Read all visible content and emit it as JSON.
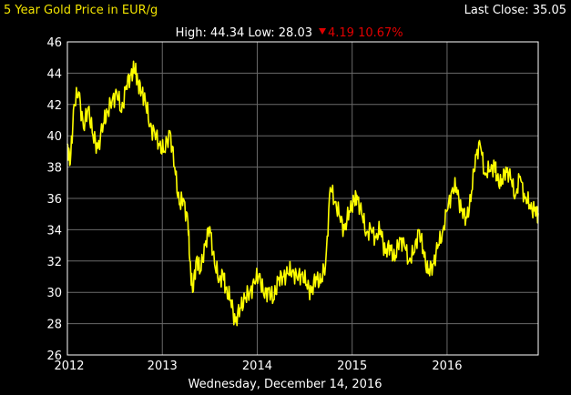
{
  "header": {
    "title": "5 Year Gold Price in EUR/g",
    "last_close_label": "Last Close: 35.05",
    "high_low_label": "High: 44.34 Low: 28.03",
    "change_label": "4.19 10.67%"
  },
  "footer": {
    "date": "Wednesday, December 14, 2016"
  },
  "colors": {
    "line": "#ffff00",
    "title": "#f2e400",
    "change_down": "#e00000",
    "grid": "#6a6a6a",
    "background": "#000000"
  },
  "chart_data": {
    "type": "line",
    "title": "5 Year Gold Price in EUR/g",
    "xlabel": "",
    "ylabel": "",
    "xlim": [
      2012.0,
      2016.96
    ],
    "ylim": [
      26,
      46
    ],
    "x_ticks": [
      "2012",
      "2013",
      "2014",
      "2015",
      "2016"
    ],
    "y_ticks": [
      26,
      28,
      30,
      32,
      34,
      36,
      38,
      40,
      42,
      44,
      46
    ],
    "grid": true,
    "series": [
      {
        "name": "",
        "x": [
          2012.0,
          2012.03,
          2012.07,
          2012.12,
          2012.17,
          2012.22,
          2012.27,
          2012.32,
          2012.38,
          2012.42,
          2012.47,
          2012.52,
          2012.57,
          2012.62,
          2012.67,
          2012.71,
          2012.74,
          2012.78,
          2012.82,
          2012.87,
          2012.92,
          2012.97,
          2013.02,
          2013.08,
          2013.13,
          2013.18,
          2013.22,
          2013.27,
          2013.29,
          2013.32,
          2013.36,
          2013.4,
          2013.45,
          2013.5,
          2013.55,
          2013.6,
          2013.64,
          2013.67,
          2013.72,
          2013.77,
          2013.82,
          2013.87,
          2013.92,
          2013.97,
          2014.02,
          2014.07,
          2014.12,
          2014.17,
          2014.22,
          2014.27,
          2014.32,
          2014.37,
          2014.42,
          2014.47,
          2014.52,
          2014.57,
          2014.62,
          2014.67,
          2014.72,
          2014.77,
          2014.82,
          2014.87,
          2014.92,
          2014.97,
          2015.02,
          2015.05,
          2015.1,
          2015.15,
          2015.2,
          2015.25,
          2015.3,
          2015.35,
          2015.4,
          2015.45,
          2015.5,
          2015.55,
          2015.6,
          2015.65,
          2015.7,
          2015.75,
          2015.8,
          2015.85,
          2015.9,
          2015.95,
          2016.0,
          2016.05,
          2016.1,
          2016.15,
          2016.2,
          2016.25,
          2016.3,
          2016.35,
          2016.4,
          2016.45,
          2016.5,
          2016.52,
          2016.57,
          2016.62,
          2016.67,
          2016.72,
          2016.77,
          2016.82,
          2016.87,
          2016.92,
          2016.96
        ],
        "y": [
          39.5,
          38.2,
          42.0,
          42.8,
          40.5,
          41.8,
          40.0,
          39.2,
          40.8,
          41.5,
          42.2,
          42.8,
          41.5,
          43.2,
          43.9,
          44.3,
          43.5,
          42.8,
          42.3,
          40.6,
          40.2,
          39.4,
          39.0,
          40.3,
          38.0,
          35.6,
          36.0,
          34.5,
          32.0,
          30.0,
          32.2,
          31.3,
          33.0,
          34.2,
          31.8,
          30.8,
          31.2,
          30.2,
          29.5,
          28.1,
          29.0,
          29.6,
          30.0,
          30.6,
          31.2,
          29.8,
          30.2,
          29.5,
          30.8,
          31.0,
          31.2,
          31.4,
          30.9,
          31.2,
          30.5,
          30.0,
          31.0,
          30.6,
          31.8,
          36.7,
          35.8,
          34.8,
          34.0,
          35.2,
          35.8,
          36.2,
          35.0,
          33.8,
          34.0,
          33.5,
          34.0,
          32.5,
          33.0,
          32.0,
          33.5,
          33.0,
          32.0,
          32.5,
          34.0,
          32.7,
          31.2,
          31.8,
          32.8,
          33.8,
          35.2,
          36.5,
          36.7,
          35.2,
          34.8,
          35.8,
          38.8,
          39.4,
          37.5,
          37.8,
          38.2,
          37.5,
          36.8,
          38.0,
          37.2,
          36.2,
          37.4,
          36.0,
          35.6,
          35.2,
          35.05
        ]
      }
    ]
  }
}
